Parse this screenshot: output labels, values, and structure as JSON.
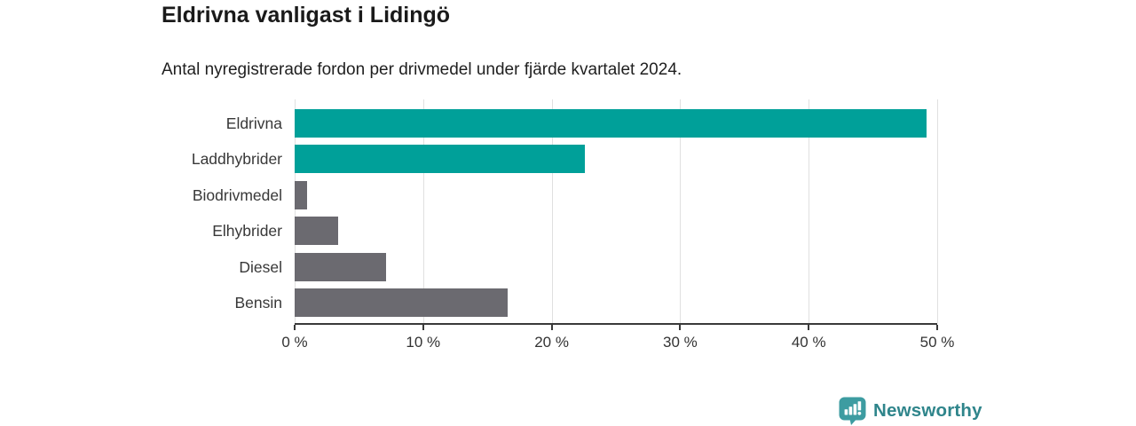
{
  "header": {
    "title": "Eldrivna vanligast i Lidingö",
    "subtitle": "Antal nyregistrerade fordon per drivmedel under fjärde kvartalet 2024."
  },
  "chart_data": {
    "type": "bar",
    "orientation": "horizontal",
    "title": "Eldrivna vanligast i Lidingö",
    "subtitle": "Antal nyregistrerade fordon per drivmedel under fjärde kvartalet 2024.",
    "categories": [
      "Eldrivna",
      "Laddhybrider",
      "Biodrivmedel",
      "Elhybrider",
      "Diesel",
      "Bensin"
    ],
    "values": [
      49.2,
      22.6,
      1.0,
      3.4,
      7.1,
      16.6
    ],
    "unit": "%",
    "xlim": [
      0,
      50
    ],
    "x_ticks": [
      0,
      10,
      20,
      30,
      40,
      50
    ],
    "x_tick_labels": [
      "0 %",
      "10 %",
      "20 %",
      "30 %",
      "40 %",
      "50 %"
    ],
    "bar_colors": [
      "#00A099",
      "#00A099",
      "#6B6A70",
      "#6B6A70",
      "#6B6A70",
      "#6B6A70"
    ],
    "grid": true,
    "legend": "none"
  },
  "colors": {
    "accent_teal": "#00A099",
    "bar_gray": "#6B6A70",
    "gridline": "#e0e0e0",
    "axis": "#3a3a3a",
    "text": "#1a1a1a",
    "brand_icon": "#3D9CA1",
    "brand_text": "#2F858B"
  },
  "branding": {
    "logo_text": "Newsworthy",
    "logo_icon": "bar-chart-badge-icon"
  }
}
